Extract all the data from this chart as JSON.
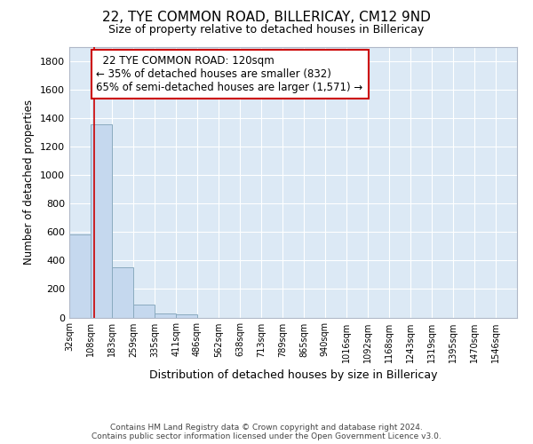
{
  "title": "22, TYE COMMON ROAD, BILLERICAY, CM12 9ND",
  "subtitle": "Size of property relative to detached houses in Billericay",
  "xlabel": "Distribution of detached houses by size in Billericay",
  "ylabel": "Number of detached properties",
  "bin_labels": [
    "32sqm",
    "108sqm",
    "183sqm",
    "259sqm",
    "335sqm",
    "411sqm",
    "486sqm",
    "562sqm",
    "638sqm",
    "713sqm",
    "789sqm",
    "865sqm",
    "940sqm",
    "1016sqm",
    "1092sqm",
    "1168sqm",
    "1243sqm",
    "1319sqm",
    "1395sqm",
    "1470sqm",
    "1546sqm"
  ],
  "bin_edges": [
    32,
    108,
    183,
    259,
    335,
    411,
    486,
    562,
    638,
    713,
    789,
    865,
    940,
    1016,
    1092,
    1168,
    1243,
    1319,
    1395,
    1470,
    1546
  ],
  "bar_heights": [
    580,
    1355,
    355,
    90,
    30,
    20,
    0,
    0,
    0,
    0,
    0,
    0,
    0,
    0,
    0,
    0,
    0,
    0,
    0,
    0
  ],
  "bar_color": "#c5d8ee",
  "bar_edge_color": "#8aaabf",
  "property_size": 120,
  "property_label": "22 TYE COMMON ROAD: 120sqm",
  "pct_smaller": "35% of detached houses are smaller (832)",
  "pct_larger_semi": "65% of semi-detached houses are larger (1,571)",
  "vline_color": "#cc0000",
  "annotation_box_color": "#cc0000",
  "ylim": [
    0,
    1900
  ],
  "yticks": [
    0,
    200,
    400,
    600,
    800,
    1000,
    1200,
    1400,
    1600,
    1800
  ],
  "background_color": "#dce9f5",
  "grid_color": "#ffffff",
  "footer_line1": "Contains HM Land Registry data © Crown copyright and database right 2024.",
  "footer_line2": "Contains public sector information licensed under the Open Government Licence v3.0."
}
